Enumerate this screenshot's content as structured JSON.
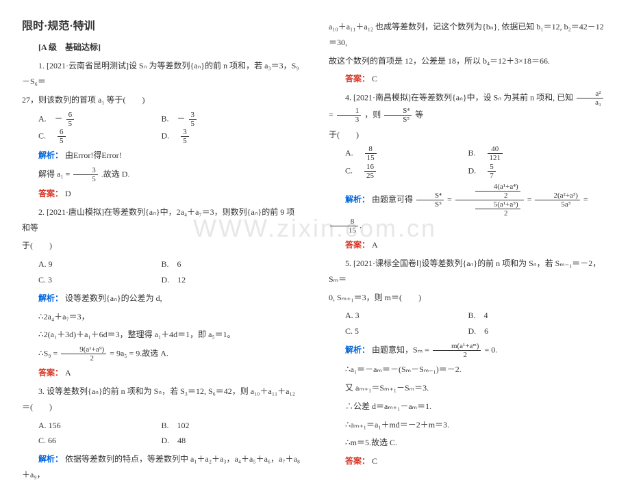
{
  "watermark": "WWW.zixin.com.cn",
  "left": {
    "title": "限时·规范·特训",
    "subheader": "[A 级　基础达标]",
    "q1": {
      "stem_a": "1. [2021·云南省昆明测试]设 Sₙ 为等差数列{aₙ}的前 n 项和，若 a₃＝3，S₉－S₆＝",
      "stem_b": "27，则该数列的首项 a₁ 等于(　　)",
      "A_pre": "A.　－",
      "A_num": "6",
      "A_den": "5",
      "B_pre": "B.　－",
      "B_num": "3",
      "B_den": "5",
      "C_pre": "C.　",
      "C_num": "6",
      "C_den": "5",
      "D_pre": "D.　",
      "D_num": "3",
      "D_den": "5",
      "analysis_label": "解析：",
      "analysis_text": "由Error!得Error!",
      "solve_a": "解得 a₁ =",
      "solve_num": "3",
      "solve_den": "5",
      "solve_b": ".故选 D.",
      "answer_label": "答案：",
      "answer": "D"
    },
    "q2": {
      "stem_a": "2. [2021·唐山模拟]在等差数列{aₙ}中，2a₄＋a₇＝3，则数列{aₙ}的前 9 项和等",
      "stem_b": "于(　　)",
      "A": "A. 9",
      "B": "B.　6",
      "C": "C. 3",
      "D": "D.　12",
      "analysis_label": "解析：",
      "a1": "设等差数列{aₙ}的公差为 d,",
      "a2": "∴2a₄＋a₇＝3，",
      "a3": "∴2(a₁＋3d)＋a₁＋6d＝3，整理得 a₁＋4d＝1，即 a₅＝1。",
      "a4a": "∴S₉ =",
      "a4_num": "9(a¹+a⁹)",
      "a4_den": "2",
      "a4b": "= 9a₅ = 9.故选 A.",
      "answer_label": "答案：",
      "answer": "A"
    },
    "q3": {
      "stem": "3. 设等差数列{aₙ}的前 n 项和为 Sₙ，若 S₃＝12, S₆＝42，则 a₁₀＋a₁₁＋a₁₂＝(　　)",
      "A": "A. 156",
      "B": "B.　102",
      "C": "C. 66",
      "D": "D.　48",
      "analysis_label": "解析：",
      "a1": "依据等差数列的特点，等差数列中 a₁＋a₂＋a₃，a₄＋a₅＋a₆，a₇＋a₈＋a₉，"
    }
  },
  "right": {
    "q3cont": {
      "a2": "a₁₀＋a₁₁＋a₁₂ 也成等差数列，记这个数列为{bₙ}, 依据已知 b₁＝12, b₂＝42－12＝30,",
      "a3": "故这个数列的首项是 12，公差是 18，所以 b₄＝12＋3×18＝66.",
      "answer_label": "答案：",
      "answer": "C"
    },
    "q4": {
      "stem_a": "4. [2021·南昌模拟]在等差数列{aₙ}中，设 Sₙ 为其前 n 项和, 已知",
      "f1_num": "a²",
      "f1_den": "a₃",
      "eq": " = ",
      "f2_num": "1",
      "f2_den": "3",
      "stem_b": "，则",
      "f3_num": "S⁴",
      "f3_den": "S⁵",
      "stem_c": "等",
      "stem_d": "于(　　)",
      "A_pre": "A.　",
      "A_num": "8",
      "A_den": "15",
      "B_pre": "B.　",
      "B_num": "40",
      "B_den": "121",
      "C_pre": "C.　",
      "C_num": "16",
      "C_den": "25",
      "D_pre": "D.　",
      "D_num": "5",
      "D_den": "7",
      "analysis_label": "解析：",
      "an_a": "由题意可得",
      "bf_num": "S⁴",
      "bf_den": "S⁵",
      "mf1_num": "4(a¹+a⁴)",
      "mf1_den": "2",
      "mf2_num": "5(a¹+a⁵)",
      "mf2_den": "2",
      "mf3_num": "2(a²+a³)",
      "mf3_den": "5a³",
      "res_num": "8",
      "res_den": "15",
      "answer_label": "答案：",
      "answer": "A"
    },
    "q5": {
      "stem_a": "5. [2021·课标全国卷Ⅰ]设等差数列{aₙ}的前 n 项和为 Sₙ，若 Sₘ₋₁＝－2，Sₘ＝",
      "stem_b": "0, Sₘ₊₁＝3，则 m＝(　　)",
      "A": "A. 3",
      "B": "B.　4",
      "C": "C. 5",
      "D": "D.　6",
      "analysis_label": "解析：",
      "l1a": "由题意知，Sₘ =",
      "l1_num": "m(a¹+aᵐ)",
      "l1_den": "2",
      "l1b": "= 0.",
      "l2": "∴a₁＝－aₘ＝－(Sₘ－Sₘ₋₁)＝－2.",
      "l3": "又 aₘ₊₁＝Sₘ₊₁－Sₘ＝3.",
      "l4": "∴公差 d＝aₘ₊₁－aₘ＝1.",
      "l5": "∴aₘ₊₁＝a₁＋md＝－2＋m＝3.",
      "l6": "∴m＝5.故选 C.",
      "answer_label": "答案：",
      "answer": "C"
    }
  }
}
